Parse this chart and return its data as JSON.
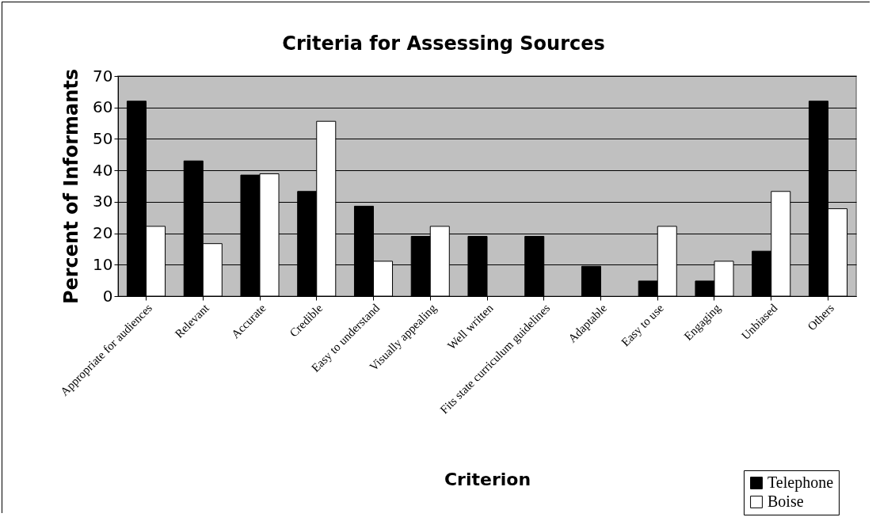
{
  "chart_data": {
    "type": "bar",
    "title": "Criteria for Assessing Sources",
    "xlabel": "Criterion",
    "ylabel": "Percent of Informants",
    "categories": [
      "Appropriate for audiences",
      "Relevant",
      "Accurate",
      "Credible",
      "Easy to understand",
      "Visually appealing",
      "Well written",
      "Fits state curriculum guidelines",
      "Adaptable",
      "Easy to use",
      "Engaging",
      "Unbiased",
      "Others"
    ],
    "series": [
      {
        "name": "Telephone",
        "color": "#000000",
        "values": [
          62,
          43,
          38.5,
          33.3,
          28.6,
          19,
          19,
          19,
          9.5,
          4.8,
          4.8,
          14.3,
          62
        ]
      },
      {
        "name": "Boise",
        "color": "#ffffff",
        "values": [
          22.2,
          16.7,
          38.9,
          55.6,
          11.1,
          22.2,
          null,
          null,
          null,
          22.2,
          11.1,
          33.3,
          27.8
        ]
      }
    ],
    "ylim": [
      0,
      70
    ],
    "yticks": [
      0,
      10,
      20,
      30,
      40,
      50,
      60,
      70
    ],
    "grid": true,
    "legend": "bottom right"
  }
}
